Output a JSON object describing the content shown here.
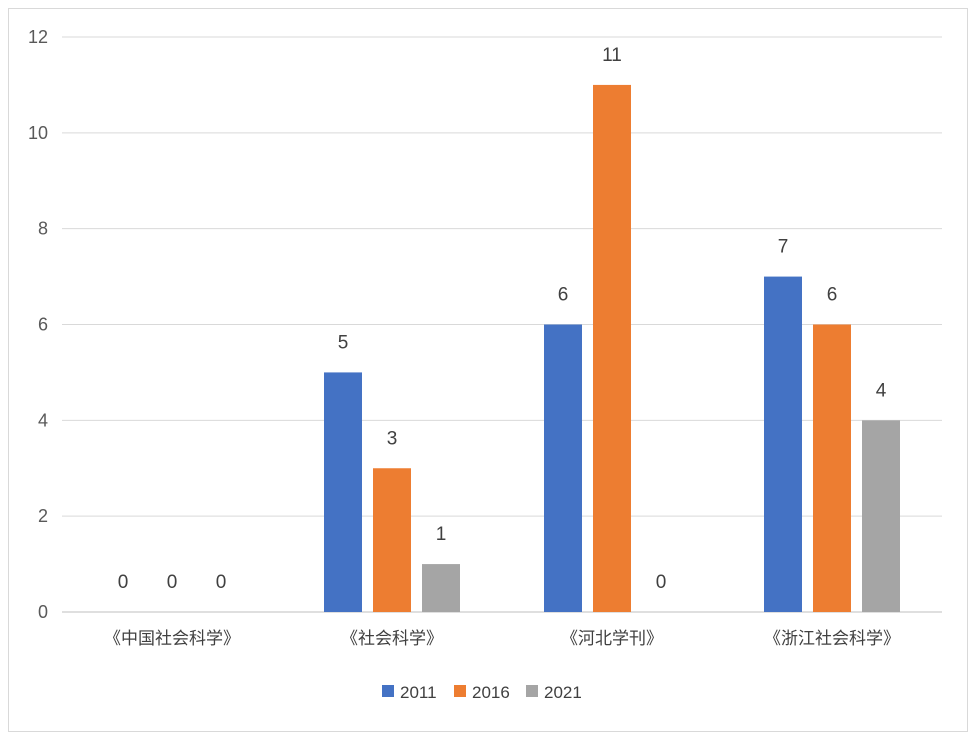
{
  "chart_data": {
    "type": "bar",
    "categories": [
      "《中国社会科学》",
      "《社会科学》",
      "《河北学刊》",
      "《浙江社会科学》"
    ],
    "series": [
      {
        "name": "2011",
        "values": [
          0,
          5,
          6,
          7
        ],
        "color": "#4472c4"
      },
      {
        "name": "2016",
        "values": [
          0,
          3,
          11,
          6
        ],
        "color": "#ed7d31"
      },
      {
        "name": "2021",
        "values": [
          0,
          1,
          0,
          4
        ],
        "color": "#a5a5a5"
      }
    ],
    "ylim": [
      0,
      12
    ],
    "yticks": [
      0,
      2,
      4,
      6,
      8,
      10,
      12
    ],
    "grid": true,
    "legend_position": "bottom",
    "data_labels": true,
    "title": "",
    "xlabel": "",
    "ylabel": ""
  },
  "colors": {
    "grid": "#d9d9d9",
    "axis": "#bfbfbf"
  }
}
